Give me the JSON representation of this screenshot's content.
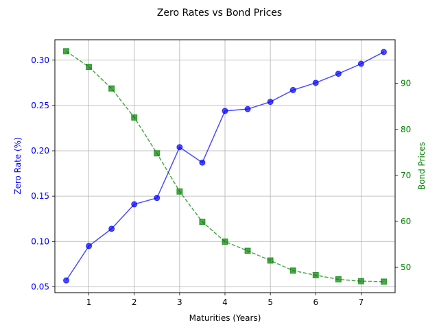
{
  "chart_data": {
    "type": "line",
    "title": "Zero Rates vs Bond Prices",
    "xlabel": "Maturities (Years)",
    "ylabel_left": "Zero Rate (%)",
    "ylabel_right": "Bond Prices",
    "xlim": [
      0.25,
      7.75
    ],
    "ylim_left": [
      0.0435,
      0.3225
    ],
    "ylim_right": [
      44.5,
      99.5
    ],
    "x_ticks": [
      1,
      2,
      3,
      4,
      5,
      6,
      7
    ],
    "y_left_ticks": [
      0.05,
      0.1,
      0.15,
      0.2,
      0.25,
      0.3
    ],
    "y_right_ticks": [
      50,
      60,
      70,
      80,
      90
    ],
    "grid": true,
    "x": [
      0.5,
      1.0,
      1.5,
      2.0,
      2.5,
      3.0,
      3.5,
      4.0,
      4.5,
      5.0,
      5.5,
      6.0,
      6.5,
      7.0,
      7.5
    ],
    "series": [
      {
        "axis": "left",
        "color": "#0000ff",
        "marker": "circle",
        "linestyle": "solid",
        "values": [
          0.057,
          0.095,
          0.114,
          0.141,
          0.148,
          0.204,
          0.187,
          0.244,
          0.246,
          0.254,
          0.267,
          0.275,
          0.285,
          0.296,
          0.309
        ]
      },
      {
        "axis": "right",
        "color": "#008000",
        "marker": "square",
        "linestyle": "dashed",
        "values": [
          97.0,
          93.6,
          88.9,
          82.6,
          74.8,
          66.5,
          59.9,
          55.6,
          53.6,
          51.5,
          49.3,
          48.3,
          47.4,
          47.0,
          46.9
        ]
      }
    ]
  }
}
